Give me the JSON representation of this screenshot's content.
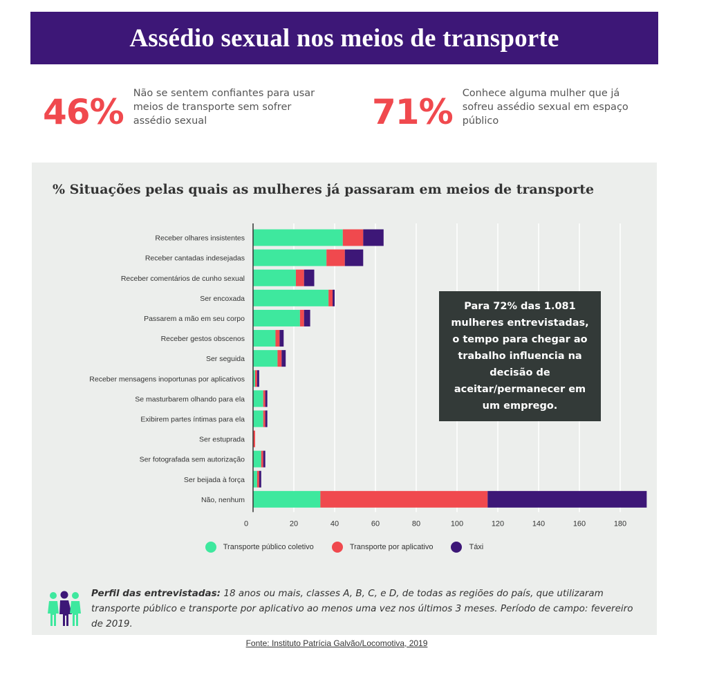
{
  "header": {
    "title": "Assédio sexual nos meios de transporte"
  },
  "stats": [
    {
      "value": "46%",
      "text": "Não se sentem confiantes para usar meios de transporte sem sofrer assédio sexual"
    },
    {
      "value": "71%",
      "text": "Conhece alguma mulher que já sofreu assédio sexual em espaço público"
    }
  ],
  "callout": {
    "text": "Para 72% das 1.081 mulheres entrevistadas, o tempo para chegar ao trabalho influencia na decisão de aceitar/permanecer em um emprego."
  },
  "profile": {
    "label": "Perfil das entrevistadas:",
    "text": "18 anos ou mais, classes A, B, C, e D, de todas as regiões do país, que utilizaram transporte público e transporte por aplicativo ao menos uma vez nos últimos 3 meses. Período de campo: fevereiro de 2019."
  },
  "source": "Fonte: Instituto Patrícia Galvão/Locomotiva, 2019",
  "colors": {
    "publico": "#3ee89e",
    "aplicativo": "#f0494e",
    "taxi": "#3d1777"
  },
  "chart_data": {
    "type": "bar",
    "orientation": "horizontal",
    "stacked": true,
    "title": "% Situações pelas quais as mulheres já passaram em meios de transporte",
    "categories": [
      "Receber olhares insistentes",
      "Receber cantadas indesejadas",
      "Receber comentários de cunho sexual",
      "Ser encoxada",
      "Passarem a mão em seu corpo",
      "Receber gestos obscenos",
      "Ser seguida",
      "Receber mensagens inoportunas por aplicativos",
      "Se masturbarem olhando para ela",
      "Exibirem partes íntimas para ela",
      "Ser estuprada",
      "Ser fotografada sem autorização",
      "Ser beijada à força",
      "Não, nenhum"
    ],
    "series": [
      {
        "name": "Transporte público coletivo",
        "values": [
          44,
          36,
          21,
          37,
          23,
          11,
          12,
          1,
          5,
          5,
          0,
          4,
          2,
          33
        ]
      },
      {
        "name": "Transporte por aplicativo",
        "values": [
          10,
          9,
          4,
          2,
          2,
          2,
          2,
          1,
          1,
          1,
          1,
          1,
          1,
          82
        ]
      },
      {
        "name": "Táxi",
        "values": [
          10,
          9,
          5,
          1,
          3,
          2,
          2,
          1,
          1,
          1,
          0,
          1,
          1,
          78
        ]
      }
    ],
    "xticks": [
      "0",
      "20",
      "40",
      "60",
      "80",
      "100",
      "120",
      "140",
      "160",
      "180"
    ],
    "xlim": [
      0,
      195
    ],
    "grid": true,
    "legend": "bottom"
  }
}
